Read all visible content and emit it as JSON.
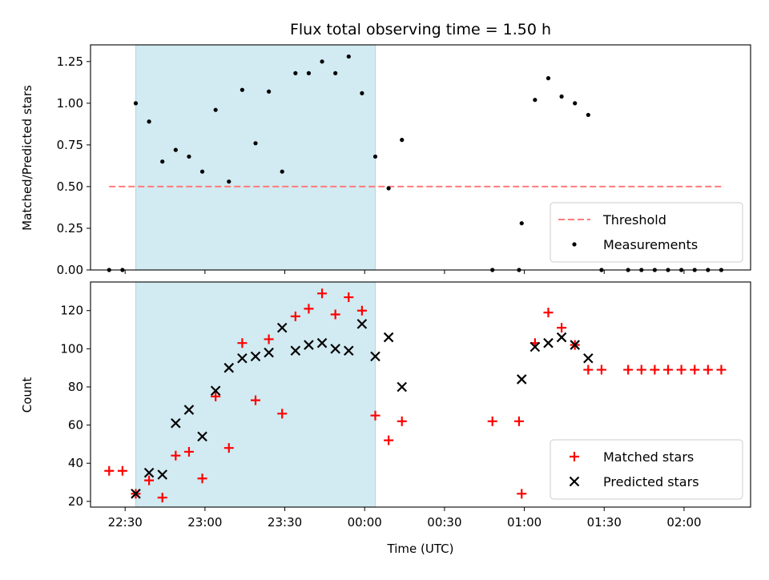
{
  "colors": {
    "shade": "#add8e6",
    "threshold": "#ff7b7b",
    "measurement": "#000000",
    "matched": "#ff0000",
    "predicted": "#000000"
  },
  "chart_data": [
    {
      "type": "scatter",
      "title": "Flux total observing time = 1.50 h",
      "xlabel": "",
      "ylabel": "Matched/Predicted stars",
      "x_axis": "time (UTC)",
      "xlim": [
        "22:17",
        "02:25"
      ],
      "ylim": [
        0.0,
        1.35
      ],
      "yticks": [
        "0.00",
        "0.25",
        "0.50",
        "0.75",
        "1.00",
        "1.25"
      ],
      "shaded_span": [
        "22:34",
        "00:04"
      ],
      "legend": "lower-right",
      "series": [
        {
          "name": "Threshold",
          "style": "dashed-line",
          "x": [
            "22:24",
            "02:14"
          ],
          "y": [
            0.5,
            0.5
          ]
        },
        {
          "name": "Measurements",
          "style": "dot",
          "x": [
            "22:24",
            "22:29",
            "22:34",
            "22:39",
            "22:44",
            "22:49",
            "22:54",
            "22:59",
            "23:04",
            "23:09",
            "23:14",
            "23:19",
            "23:24",
            "23:29",
            "23:34",
            "23:39",
            "23:44",
            "23:49",
            "23:54",
            "23:59",
            "00:04",
            "00:09",
            "00:14",
            "00:48",
            "00:58",
            "00:59",
            "01:04",
            "01:09",
            "01:14",
            "01:19",
            "01:24",
            "01:29",
            "01:39",
            "01:44",
            "01:49",
            "01:54",
            "01:59",
            "02:04",
            "02:09",
            "02:14"
          ],
          "y": [
            0.0,
            0.0,
            1.0,
            0.89,
            0.65,
            0.72,
            0.68,
            0.59,
            0.96,
            0.53,
            1.08,
            0.76,
            1.07,
            0.59,
            1.18,
            1.18,
            1.25,
            1.18,
            1.28,
            1.06,
            0.68,
            0.49,
            0.78,
            0.0,
            0.0,
            0.28,
            1.02,
            1.15,
            1.04,
            1.0,
            0.93,
            0.0,
            0.0,
            0.0,
            0.0,
            0.0,
            0.0,
            0.0,
            0.0,
            0.0
          ]
        }
      ]
    },
    {
      "type": "scatter",
      "title": "",
      "xlabel": "Time (UTC)",
      "ylabel": "Count",
      "x_axis": "time (UTC)",
      "xlim": [
        "22:17",
        "02:25"
      ],
      "ylim": [
        17,
        135
      ],
      "yticks": [
        "20",
        "40",
        "60",
        "80",
        "100",
        "120"
      ],
      "xticks": [
        "22:30",
        "23:00",
        "23:30",
        "00:00",
        "00:30",
        "01:00",
        "01:30",
        "02:00"
      ],
      "shaded_span": [
        "22:34",
        "00:04"
      ],
      "legend": "lower-right",
      "series": [
        {
          "name": "Matched stars",
          "style": "plus",
          "x": [
            "22:24",
            "22:29",
            "22:34",
            "22:39",
            "22:44",
            "22:49",
            "22:54",
            "22:59",
            "23:04",
            "23:09",
            "23:14",
            "23:19",
            "23:24",
            "23:29",
            "23:34",
            "23:39",
            "23:44",
            "23:49",
            "23:54",
            "23:59",
            "00:04",
            "00:09",
            "00:14",
            "00:48",
            "00:58",
            "00:59",
            "01:04",
            "01:09",
            "01:14",
            "01:19",
            "01:24",
            "01:29",
            "01:39",
            "01:44",
            "01:49",
            "01:54",
            "01:59",
            "02:04",
            "02:09",
            "02:14"
          ],
          "y": [
            36,
            36,
            24,
            31,
            22,
            44,
            46,
            32,
            75,
            48,
            103,
            73,
            105,
            66,
            117,
            121,
            129,
            118,
            127,
            120,
            65,
            52,
            62,
            62,
            62,
            24,
            103,
            119,
            111,
            102,
            89,
            89,
            89,
            89,
            89,
            89,
            89,
            89,
            89,
            89
          ]
        },
        {
          "name": "Predicted stars",
          "style": "cross",
          "x": [
            "22:34",
            "22:39",
            "22:44",
            "22:49",
            "22:54",
            "22:59",
            "23:04",
            "23:09",
            "23:14",
            "23:19",
            "23:24",
            "23:29",
            "23:34",
            "23:39",
            "23:44",
            "23:49",
            "23:54",
            "23:59",
            "00:04",
            "00:09",
            "00:14",
            "00:59",
            "01:04",
            "01:09",
            "01:14",
            "01:19",
            "01:24"
          ],
          "y": [
            24,
            35,
            34,
            61,
            68,
            54,
            78,
            90,
            95,
            96,
            98,
            111,
            99,
            102,
            103,
            100,
            99,
            113,
            96,
            106,
            80,
            84,
            101,
            103,
            106,
            102,
            95
          ]
        }
      ]
    }
  ]
}
